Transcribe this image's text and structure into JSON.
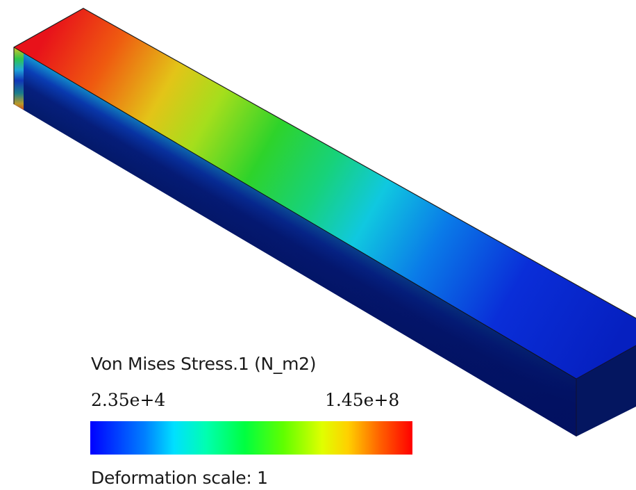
{
  "legend": {
    "title": "Von Mises Stress.1 (N_m2)",
    "min_label": "2.35e+4",
    "max_label": "1.45e+8",
    "colormap": [
      "#0000ff",
      "#00b0ff",
      "#00ffff",
      "#00ff40",
      "#40ff00",
      "#ffff00",
      "#ff8000",
      "#ff0000"
    ]
  },
  "deformation": {
    "label": "Deformation scale: 1"
  },
  "model": {
    "name": "beam-stress-contour",
    "edge_color": "#202020"
  }
}
